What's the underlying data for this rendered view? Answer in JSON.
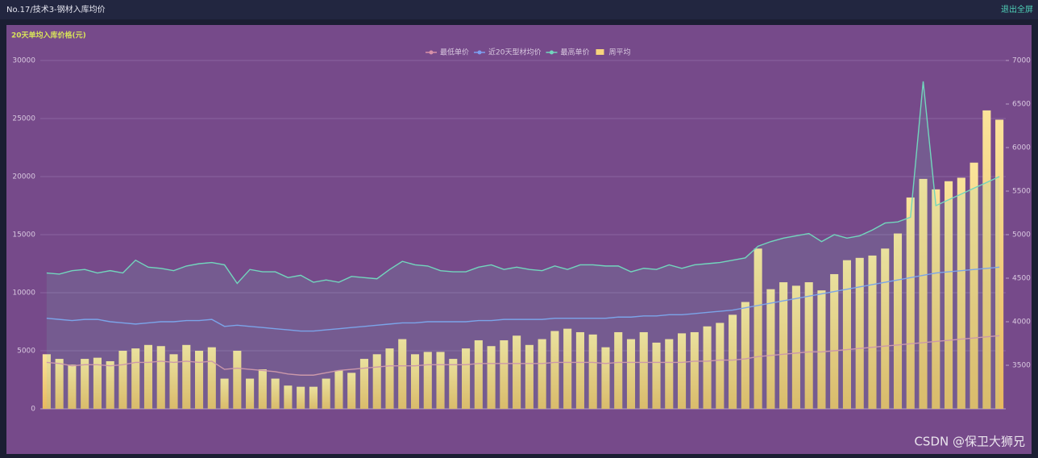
{
  "header": {
    "title": "No.17/技术3-钢材入库均价",
    "action": "退出全屏"
  },
  "watermark": "CSDN @保卫大狮兄",
  "chart_data": {
    "type": "bar-line",
    "subtitle": "20天单均入库价格(元)",
    "categories": [
      null,
      null,
      null,
      null,
      null,
      null,
      null,
      null,
      null,
      null,
      null,
      null,
      null,
      null,
      null,
      null,
      null,
      null,
      null,
      null,
      null,
      null,
      null,
      null,
      null,
      null,
      null,
      null,
      null,
      null,
      null,
      null,
      null,
      null,
      null,
      null,
      null,
      null,
      null,
      null,
      null,
      null,
      null,
      null,
      null,
      null,
      null,
      null,
      null,
      null,
      null,
      null,
      null,
      null,
      null,
      null,
      null,
      null,
      null,
      null,
      null,
      null,
      null,
      null,
      null,
      null,
      null,
      null,
      null,
      null,
      null,
      null,
      null,
      null,
      null,
      null
    ],
    "ylim": [
      0,
      30000
    ],
    "yticks": [
      0,
      5000,
      10000,
      15000,
      20000,
      25000,
      30000
    ],
    "y2lim": [
      3000,
      7000
    ],
    "y2ticks": [
      3500,
      4000,
      4500,
      5000,
      5500,
      6000,
      6500,
      7000
    ],
    "grid": true,
    "series": [
      {
        "name": "最低单价",
        "type": "line",
        "color": "#d890a8",
        "values": [
          4000,
          3900,
          3700,
          3800,
          3800,
          3700,
          3800,
          4000,
          4000,
          4100,
          4000,
          4100,
          4000,
          4100,
          3400,
          3500,
          3400,
          3300,
          3200,
          3000,
          2900,
          2900,
          3100,
          3300,
          3400,
          3500,
          3600,
          3700,
          3700,
          3700,
          3800,
          3800,
          3800,
          3800,
          3900,
          3900,
          3900,
          3900,
          3900,
          3900,
          4000,
          4000,
          4000,
          4000,
          3900,
          4000,
          4000,
          4000,
          4000,
          4000,
          4000,
          4100,
          4100,
          4200,
          4200,
          4300,
          4500,
          4600,
          4700,
          4800,
          4900,
          4900,
          5000,
          5100,
          5200,
          5300,
          5400,
          5500,
          5600,
          5700,
          5800,
          5900,
          6000,
          6100,
          6200,
          6300
        ]
      },
      {
        "name": "近20天型材均价",
        "type": "line",
        "color": "#7d9ef0",
        "values": [
          7800,
          7700,
          7600,
          7700,
          7700,
          7500,
          7400,
          7300,
          7400,
          7500,
          7500,
          7600,
          7600,
          7700,
          7100,
          7200,
          7100,
          7000,
          6900,
          6800,
          6700,
          6700,
          6800,
          6900,
          7000,
          7100,
          7200,
          7300,
          7400,
          7400,
          7500,
          7500,
          7500,
          7500,
          7600,
          7600,
          7700,
          7700,
          7700,
          7700,
          7800,
          7800,
          7800,
          7800,
          7800,
          7900,
          7900,
          8000,
          8000,
          8100,
          8100,
          8200,
          8300,
          8400,
          8500,
          8700,
          8900,
          9100,
          9300,
          9500,
          9700,
          9900,
          10100,
          10300,
          10500,
          10700,
          10900,
          11100,
          11300,
          11500,
          11700,
          11800,
          11900,
          12000,
          12100,
          12200
        ]
      },
      {
        "name": "最高单价",
        "type": "line",
        "color": "#72d6bd",
        "values": [
          11700,
          11600,
          11900,
          12000,
          11700,
          11900,
          11700,
          12800,
          12200,
          12100,
          11900,
          12300,
          12500,
          12600,
          12400,
          10800,
          12000,
          11800,
          11800,
          11300,
          11500,
          10900,
          11100,
          10900,
          11400,
          11300,
          11200,
          12000,
          12700,
          12400,
          12300,
          11900,
          11800,
          11800,
          12200,
          12400,
          12000,
          12200,
          12000,
          11900,
          12300,
          12000,
          12400,
          12400,
          12300,
          12300,
          11800,
          12100,
          12000,
          12400,
          12100,
          12400,
          12500,
          12600,
          12800,
          13000,
          14000,
          14400,
          14700,
          14900,
          15100,
          14400,
          15000,
          14700,
          14900,
          15400,
          16000,
          16100,
          16500,
          28200,
          17500,
          18000,
          18500,
          19000,
          19500,
          20000
        ]
      },
      {
        "name": "周平均",
        "type": "bar",
        "color": "#f7d37c",
        "values": [
          4700,
          4300,
          3800,
          4300,
          4400,
          4100,
          5000,
          5200,
          5500,
          5400,
          4700,
          5500,
          5000,
          5300,
          2600,
          5000,
          2600,
          3400,
          2600,
          2000,
          1900,
          1900,
          2600,
          3300,
          3100,
          4300,
          4700,
          5200,
          6000,
          4700,
          4900,
          4900,
          4300,
          5200,
          5900,
          5400,
          5900,
          6300,
          5500,
          6000,
          6700,
          6900,
          6600,
          6400,
          5300,
          6600,
          6000,
          6600,
          5700,
          6000,
          6500,
          6600,
          7100,
          7400,
          8100,
          9200,
          13800,
          10300,
          10900,
          10600,
          10900,
          10200,
          11600,
          12800,
          13000,
          13200,
          13800,
          15100,
          18200,
          19800,
          18900,
          19600,
          19900,
          21200,
          25700,
          24900
        ]
      }
    ]
  }
}
